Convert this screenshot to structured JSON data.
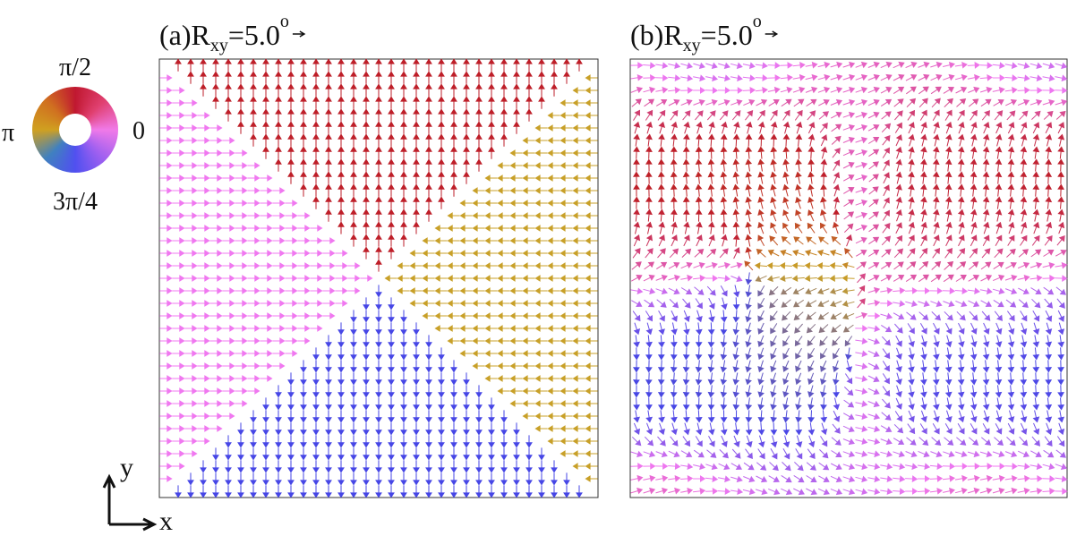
{
  "panels": [
    {
      "label": "(a)",
      "symbol": "R",
      "subscript": "xy",
      "value": "=5.0",
      "superscript": "o"
    },
    {
      "label": "(b)",
      "symbol": "R",
      "subscript": "xy",
      "value": "=5.0",
      "superscript": "o"
    }
  ],
  "color_wheel": {
    "top": "π/2",
    "right": "0",
    "left": "π",
    "bottom": "3π/4"
  },
  "axes": {
    "x": "x",
    "y": "y"
  }
}
